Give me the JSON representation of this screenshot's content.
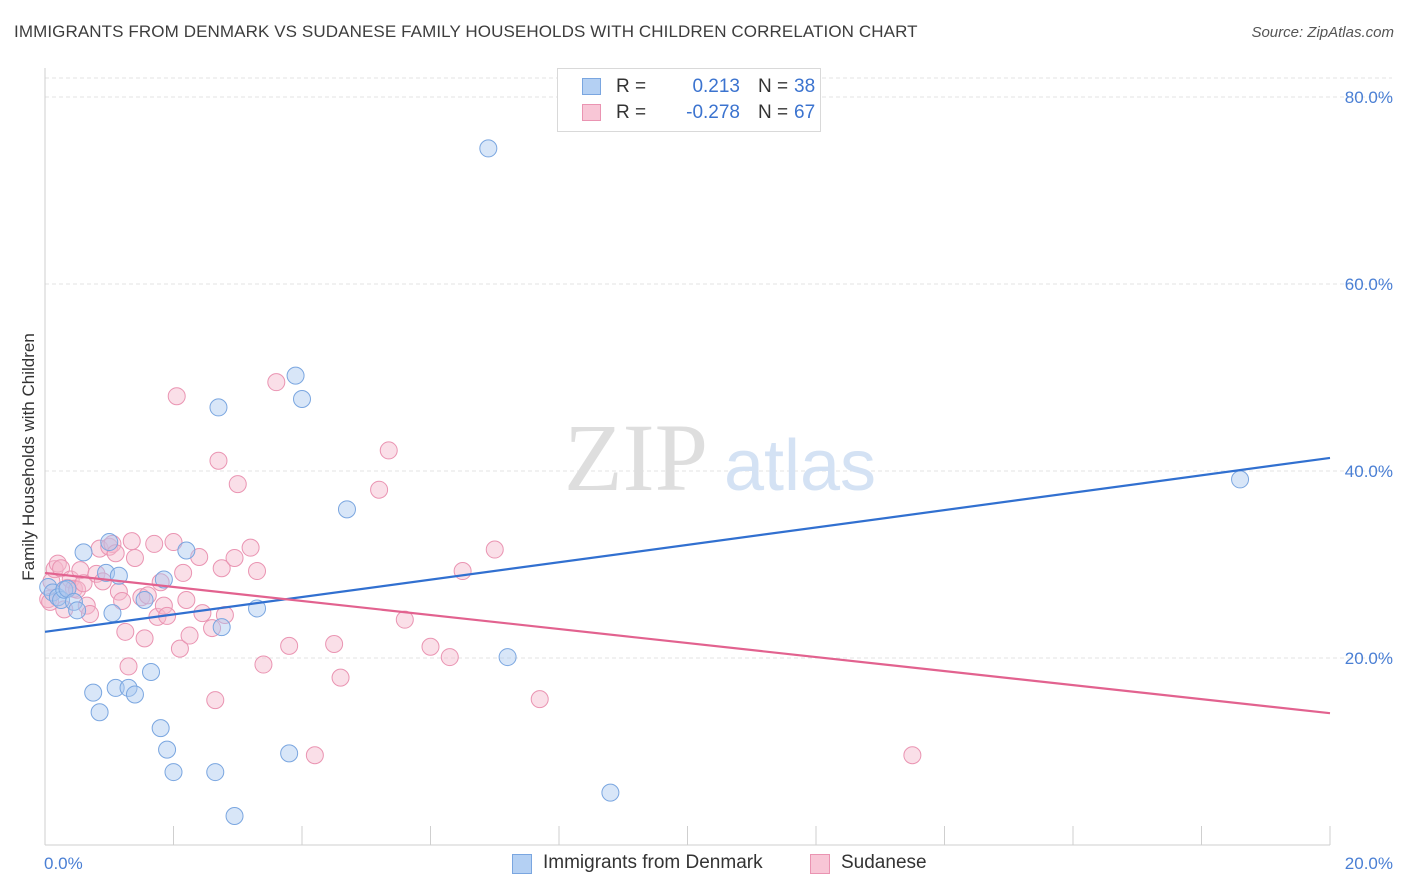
{
  "title": "IMMIGRANTS FROM DENMARK VS SUDANESE FAMILY HOUSEHOLDS WITH CHILDREN CORRELATION CHART",
  "source": "Source: ZipAtlas.com",
  "watermark": {
    "zip": "ZIP",
    "atlas": "atlas"
  },
  "legend": {
    "series1": {
      "r_label": "R =",
      "r_value": "0.213",
      "n_label": "N =",
      "n_value": "38"
    },
    "series2": {
      "r_label": "R =",
      "r_value": "-0.278",
      "n_label": "N =",
      "n_value": "67"
    }
  },
  "colors": {
    "blue_fill": "#a8c8f0",
    "blue_stroke": "#7aa6e0",
    "blue_line": "#3170d0",
    "pink_fill": "#f5b8cc",
    "pink_stroke": "#ea94b2",
    "pink_line": "#e2628f",
    "grid": "#e3e3e3",
    "tick_text": "#4a7fd4"
  },
  "chart_data": {
    "type": "scatter",
    "title": "IMMIGRANTS FROM DENMARK VS SUDANESE FAMILY HOUSEHOLDS WITH CHILDREN CORRELATION CHART",
    "xlabel": "",
    "ylabel": "Family Households with Children",
    "xlim": [
      0,
      20
    ],
    "ylim": [
      0,
      80
    ],
    "x_ticks": [
      "0.0%",
      "20.0%"
    ],
    "y_ticks": [
      {
        "value": 20,
        "label": "20.0%"
      },
      {
        "value": 40,
        "label": "40.0%"
      },
      {
        "value": 60,
        "label": "60.0%"
      },
      {
        "value": 80,
        "label": "80.0%"
      }
    ],
    "series": [
      {
        "name": "Immigrants from Denmark",
        "color": "blue",
        "trend": {
          "x": [
            0,
            20
          ],
          "y": [
            22.8,
            41.4
          ]
        },
        "points": [
          [
            0.05,
            27.6
          ],
          [
            0.12,
            27.0
          ],
          [
            0.2,
            26.5
          ],
          [
            0.25,
            26.2
          ],
          [
            0.3,
            27.3
          ],
          [
            0.35,
            27.4
          ],
          [
            0.45,
            26.0
          ],
          [
            0.5,
            25.1
          ],
          [
            0.6,
            31.3
          ],
          [
            0.75,
            16.3
          ],
          [
            0.85,
            14.2
          ],
          [
            0.95,
            29.1
          ],
          [
            1.0,
            32.4
          ],
          [
            1.05,
            24.8
          ],
          [
            1.1,
            16.8
          ],
          [
            1.15,
            28.8
          ],
          [
            1.3,
            16.8
          ],
          [
            1.4,
            16.1
          ],
          [
            1.55,
            26.2
          ],
          [
            1.65,
            18.5
          ],
          [
            1.8,
            12.5
          ],
          [
            1.85,
            28.4
          ],
          [
            1.9,
            10.2
          ],
          [
            2.0,
            7.8
          ],
          [
            2.2,
            31.5
          ],
          [
            2.65,
            7.8
          ],
          [
            2.7,
            46.8
          ],
          [
            2.75,
            23.3
          ],
          [
            2.95,
            3.1
          ],
          [
            3.3,
            25.3
          ],
          [
            3.8,
            9.8
          ],
          [
            3.9,
            50.2
          ],
          [
            4.0,
            47.7
          ],
          [
            4.7,
            35.9
          ],
          [
            6.9,
            74.5
          ],
          [
            7.2,
            20.1
          ],
          [
            8.8,
            5.6
          ],
          [
            18.6,
            39.1
          ]
        ]
      },
      {
        "name": "Sudanese",
        "color": "pink",
        "trend": {
          "x": [
            0,
            20
          ],
          "y": [
            29.1,
            14.1
          ]
        },
        "points": [
          [
            0.05,
            26.3
          ],
          [
            0.1,
            28.2
          ],
          [
            0.15,
            29.5
          ],
          [
            0.2,
            30.1
          ],
          [
            0.25,
            29.6
          ],
          [
            0.3,
            25.2
          ],
          [
            0.35,
            27.5
          ],
          [
            0.4,
            28.4
          ],
          [
            0.45,
            27.4
          ],
          [
            0.5,
            27.3
          ],
          [
            0.55,
            29.4
          ],
          [
            0.6,
            28.0
          ],
          [
            0.65,
            25.6
          ],
          [
            0.7,
            24.7
          ],
          [
            0.8,
            29.0
          ],
          [
            0.85,
            31.7
          ],
          [
            0.9,
            28.2
          ],
          [
            1.0,
            31.9
          ],
          [
            1.05,
            32.2
          ],
          [
            1.1,
            31.2
          ],
          [
            1.15,
            27.1
          ],
          [
            1.2,
            26.1
          ],
          [
            1.25,
            22.8
          ],
          [
            1.3,
            19.1
          ],
          [
            1.35,
            32.5
          ],
          [
            1.4,
            30.7
          ],
          [
            1.5,
            26.5
          ],
          [
            1.55,
            22.1
          ],
          [
            1.6,
            26.7
          ],
          [
            1.7,
            32.2
          ],
          [
            1.75,
            24.4
          ],
          [
            1.8,
            28.1
          ],
          [
            1.85,
            25.6
          ],
          [
            1.9,
            24.5
          ],
          [
            2.0,
            32.4
          ],
          [
            2.05,
            48.0
          ],
          [
            2.1,
            21.0
          ],
          [
            2.15,
            29.1
          ],
          [
            2.2,
            26.2
          ],
          [
            2.25,
            22.4
          ],
          [
            2.4,
            30.8
          ],
          [
            2.45,
            24.8
          ],
          [
            2.6,
            23.2
          ],
          [
            2.65,
            15.5
          ],
          [
            2.7,
            41.1
          ],
          [
            2.75,
            29.6
          ],
          [
            2.8,
            24.6
          ],
          [
            2.95,
            30.7
          ],
          [
            3.0,
            38.6
          ],
          [
            3.2,
            31.8
          ],
          [
            3.3,
            29.3
          ],
          [
            3.4,
            19.3
          ],
          [
            3.6,
            49.5
          ],
          [
            3.8,
            21.3
          ],
          [
            4.2,
            9.6
          ],
          [
            4.5,
            21.5
          ],
          [
            4.6,
            17.9
          ],
          [
            5.2,
            38.0
          ],
          [
            5.35,
            42.2
          ],
          [
            5.6,
            24.1
          ],
          [
            6.0,
            21.2
          ],
          [
            6.3,
            20.1
          ],
          [
            6.5,
            29.3
          ],
          [
            7.0,
            31.6
          ],
          [
            7.7,
            15.6
          ],
          [
            13.5,
            9.6
          ],
          [
            0.08,
            26.0
          ]
        ]
      }
    ]
  },
  "bottom_legend": {
    "series1": "Immigrants from Denmark",
    "series2": "Sudanese"
  }
}
